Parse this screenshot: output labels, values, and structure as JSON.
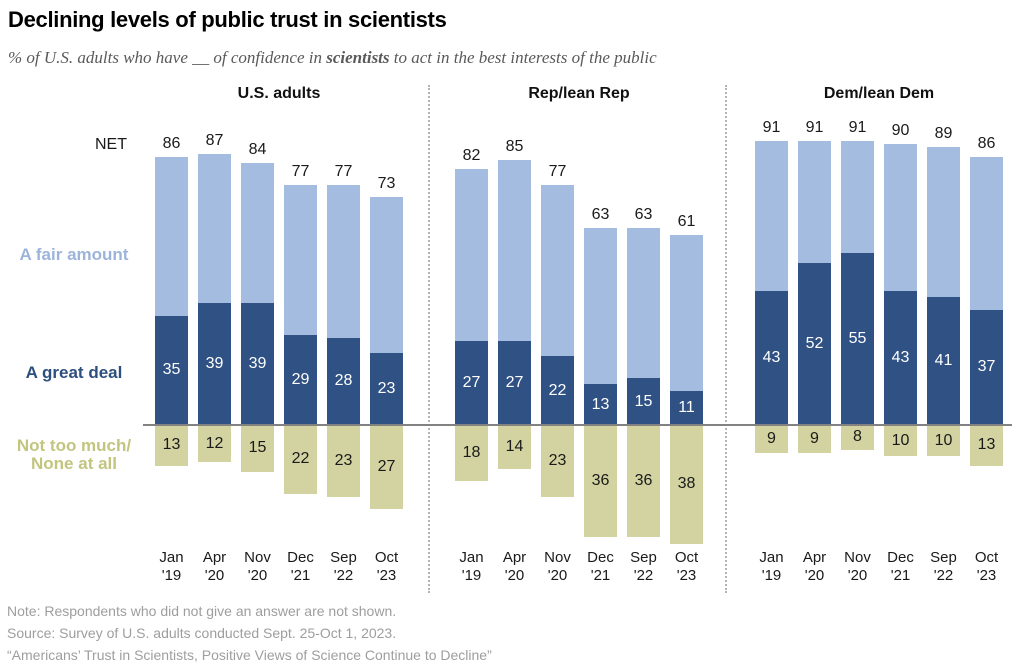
{
  "title": "Declining levels of public trust in scientists",
  "subtitle": {
    "pre": "% of U.S. adults who have __ of confidence in ",
    "bold": "scientists",
    "post": " to act in the best interests of the public"
  },
  "net_label": "NET",
  "row_labels": {
    "fair": "A fair amount",
    "great": "A great deal",
    "none1": "Not too much/",
    "none2": "None at all"
  },
  "x_labels": [
    [
      "Jan",
      "'19"
    ],
    [
      "Apr",
      "'20"
    ],
    [
      "Nov",
      "'20"
    ],
    [
      "Dec",
      "'21"
    ],
    [
      "Sep",
      "'22"
    ],
    [
      "Oct",
      "'23"
    ]
  ],
  "chart_data": {
    "type": "bar",
    "subtype": "diverging-stacked-bar, 3 panels",
    "title": "Declining levels of public trust in scientists",
    "categories": [
      "Jan '19",
      "Apr '20",
      "Nov '20",
      "Dec '21",
      "Sep '22",
      "Oct '23"
    ],
    "series_order": [
      "A fair amount (upper stack)",
      "A great deal (lower stack above axis)",
      "Not too much/None at all (below axis)"
    ],
    "groups": [
      {
        "name": "U.S. adults",
        "net": [
          86,
          87,
          84,
          77,
          77,
          73
        ],
        "a_great_deal": [
          35,
          39,
          39,
          29,
          28,
          23
        ],
        "a_fair_amount_implied": [
          51,
          48,
          45,
          48,
          49,
          50
        ],
        "not_too_much_or_none": [
          13,
          12,
          15,
          22,
          23,
          27
        ]
      },
      {
        "name": "Rep/lean Rep",
        "net": [
          82,
          85,
          77,
          63,
          63,
          61
        ],
        "a_great_deal": [
          27,
          27,
          22,
          13,
          15,
          11
        ],
        "a_fair_amount_implied": [
          55,
          58,
          55,
          50,
          48,
          50
        ],
        "not_too_much_or_none": [
          18,
          14,
          23,
          36,
          36,
          38
        ]
      },
      {
        "name": "Dem/lean Dem",
        "net": [
          91,
          91,
          91,
          90,
          89,
          86
        ],
        "a_great_deal": [
          43,
          52,
          55,
          43,
          41,
          37
        ],
        "a_fair_amount_implied": [
          48,
          39,
          36,
          47,
          48,
          49
        ],
        "not_too_much_or_none": [
          9,
          9,
          8,
          10,
          10,
          13
        ]
      }
    ],
    "ylim": [
      -40,
      95
    ],
    "grid": false,
    "legend_position": "left-margin row labels"
  },
  "colors": {
    "fair_bar": "#a3bce0",
    "great_bar": "#2f5183",
    "none_bar": "#d2d3a0",
    "fair_label": "#9db4da",
    "great_label": "#2d4f7e",
    "none_label": "#c2c57f",
    "inner_dark_text": "#ffffff",
    "inner_none_text": "#1a1a1a",
    "axis_line": "#828282",
    "divider": "#b3b3b3",
    "notes_text": "#9e9e9e"
  },
  "notes": [
    "Note: Respondents who did not give an answer are not shown.",
    "Source: Survey of U.S. adults conducted Sept. 25-Oct 1, 2023.",
    "“Americans’ Trust in Scientists, Positive Views of Science Continue to Decline”"
  ]
}
